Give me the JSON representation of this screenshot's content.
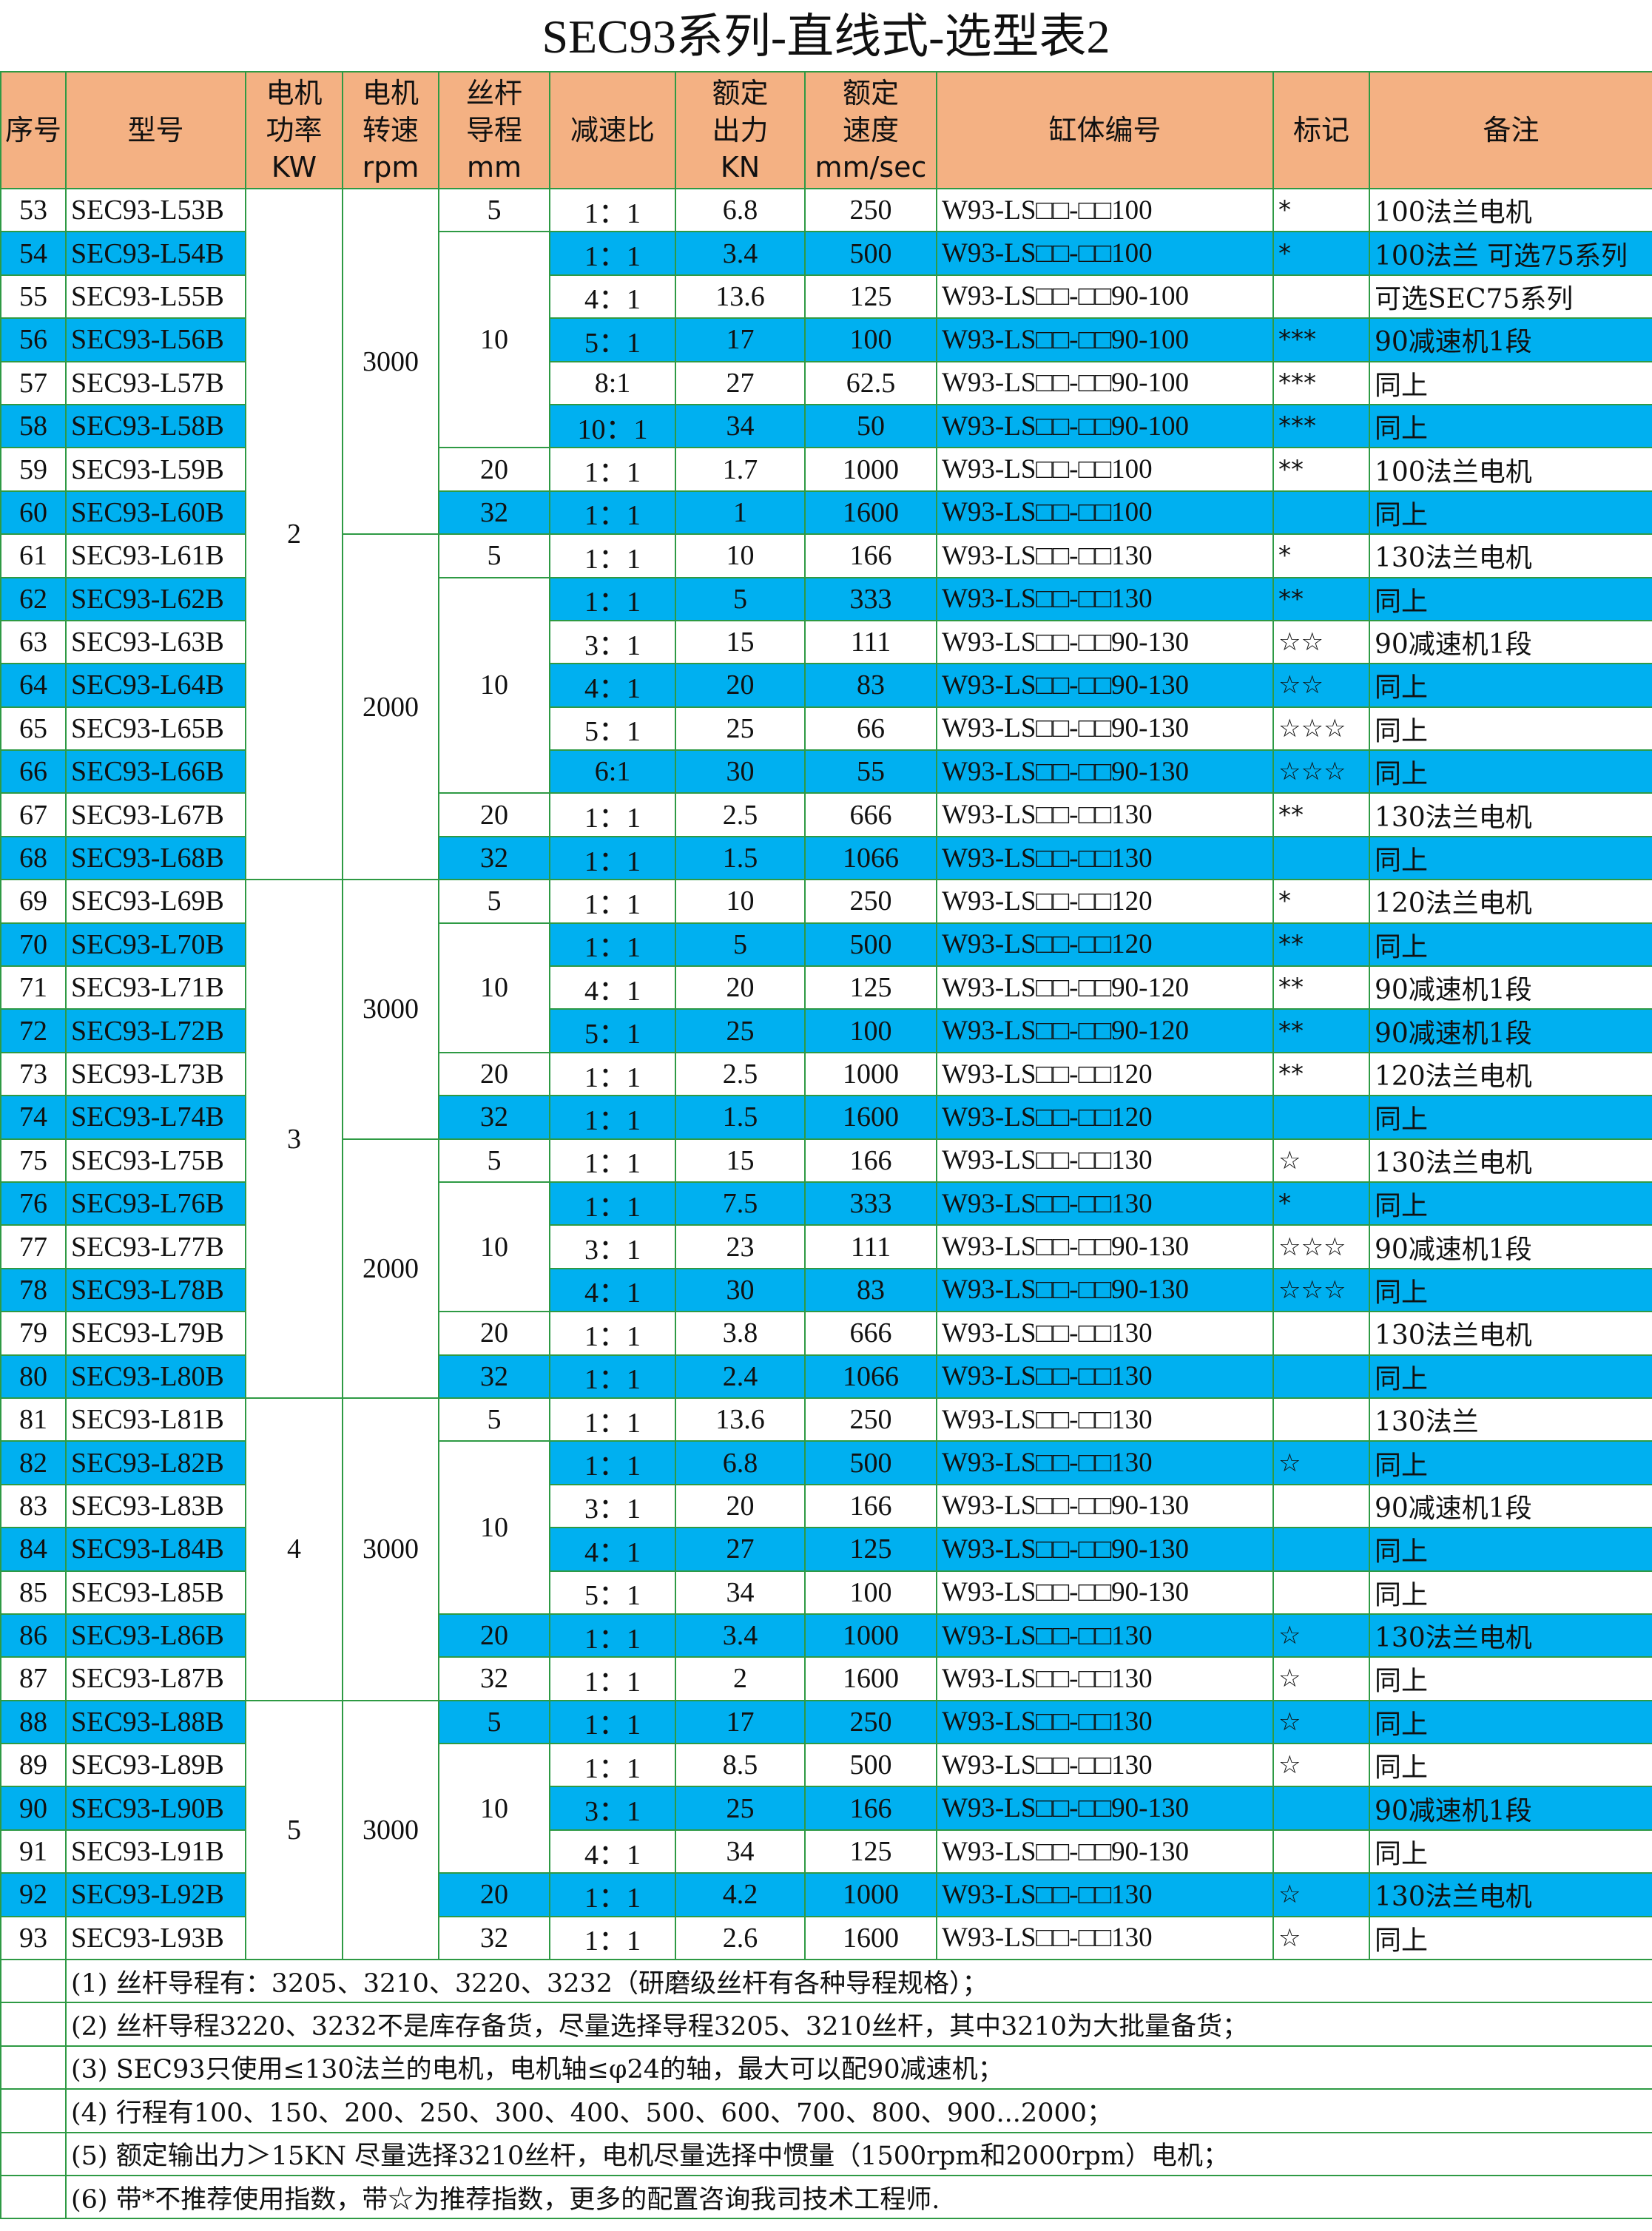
{
  "title": "SEC93系列-直线式-选型表2",
  "header": [
    {
      "key": "no",
      "lines": [
        "序号"
      ]
    },
    {
      "key": "model",
      "lines": [
        "型号"
      ]
    },
    {
      "key": "power",
      "lines": [
        "电机",
        "功率",
        "KW"
      ]
    },
    {
      "key": "speed",
      "lines": [
        "电机",
        "转速",
        "rpm"
      ]
    },
    {
      "key": "lead",
      "lines": [
        "丝杆",
        "导程",
        "mm"
      ]
    },
    {
      "key": "ratio",
      "lines": [
        "减速比"
      ]
    },
    {
      "key": "force",
      "lines": [
        "额定",
        "出力",
        "KN"
      ]
    },
    {
      "key": "vel",
      "lines": [
        "额定",
        "速度",
        "mm/sec"
      ]
    },
    {
      "key": "cylinder",
      "lines": [
        "缸体编号"
      ]
    },
    {
      "key": "mark",
      "lines": [
        "标记"
      ]
    },
    {
      "key": "note",
      "lines": [
        "备注"
      ]
    }
  ],
  "rows": [
    {
      "no": "53",
      "model": "SEC93-L53B",
      "ratio": "1：1",
      "force": "6.8",
      "vel": "250",
      "cylinder": "W93-LS□□-□□100",
      "mark": "*",
      "note": "100法兰电机"
    },
    {
      "no": "54",
      "model": "SEC93-L54B",
      "ratio": "1：1",
      "force": "3.4",
      "vel": "500",
      "cylinder": "W93-LS□□-□□100",
      "mark": "*",
      "note": "100法兰 可选75系列"
    },
    {
      "no": "55",
      "model": "SEC93-L55B",
      "ratio": "4：1",
      "force": "13.6",
      "vel": "125",
      "cylinder": "W93-LS□□-□□90-100",
      "mark": "",
      "note": "可选SEC75系列"
    },
    {
      "no": "56",
      "model": "SEC93-L56B",
      "ratio": "5：1",
      "force": "17",
      "vel": "100",
      "cylinder": "W93-LS□□-□□90-100",
      "mark": "***",
      "note": "90减速机1段"
    },
    {
      "no": "57",
      "model": "SEC93-L57B",
      "ratio": "8:1",
      "force": "27",
      "vel": "62.5",
      "cylinder": "W93-LS□□-□□90-100",
      "mark": "***",
      "note": "同上"
    },
    {
      "no": "58",
      "model": "SEC93-L58B",
      "ratio": "10：1",
      "force": "34",
      "vel": "50",
      "cylinder": "W93-LS□□-□□90-100",
      "mark": "***",
      "note": "同上"
    },
    {
      "no": "59",
      "model": "SEC93-L59B",
      "ratio": "1：1",
      "force": "1.7",
      "vel": "1000",
      "cylinder": "W93-LS□□-□□100",
      "mark": "**",
      "note": "100法兰电机"
    },
    {
      "no": "60",
      "model": "SEC93-L60B",
      "ratio": "1：1",
      "force": "1",
      "vel": "1600",
      "cylinder": "W93-LS□□-□□100",
      "mark": "",
      "note": "同上"
    },
    {
      "no": "61",
      "model": "SEC93-L61B",
      "ratio": "1：1",
      "force": "10",
      "vel": "166",
      "cylinder": "W93-LS□□-□□130",
      "mark": "*",
      "note": "130法兰电机"
    },
    {
      "no": "62",
      "model": "SEC93-L62B",
      "ratio": "1：1",
      "force": "5",
      "vel": "333",
      "cylinder": "W93-LS□□-□□130",
      "mark": "**",
      "note": "同上"
    },
    {
      "no": "63",
      "model": "SEC93-L63B",
      "ratio": "3：1",
      "force": "15",
      "vel": "111",
      "cylinder": "W93-LS□□-□□90-130",
      "mark": "☆☆",
      "note": "90减速机1段"
    },
    {
      "no": "64",
      "model": "SEC93-L64B",
      "ratio": "4：1",
      "force": "20",
      "vel": "83",
      "cylinder": "W93-LS□□-□□90-130",
      "mark": "☆☆",
      "note": "同上"
    },
    {
      "no": "65",
      "model": "SEC93-L65B",
      "ratio": "5：1",
      "force": "25",
      "vel": "66",
      "cylinder": "W93-LS□□-□□90-130",
      "mark": "☆☆☆",
      "note": "同上"
    },
    {
      "no": "66",
      "model": "SEC93-L66B",
      "ratio": "6:1",
      "force": "30",
      "vel": "55",
      "cylinder": "W93-LS□□-□□90-130",
      "mark": "☆☆☆",
      "note": "同上"
    },
    {
      "no": "67",
      "model": "SEC93-L67B",
      "ratio": "1：1",
      "force": "2.5",
      "vel": "666",
      "cylinder": "W93-LS□□-□□130",
      "mark": "**",
      "note": "130法兰电机"
    },
    {
      "no": "68",
      "model": "SEC93-L68B",
      "ratio": "1：1",
      "force": "1.5",
      "vel": "1066",
      "cylinder": "W93-LS□□-□□130",
      "mark": "",
      "note": "同上"
    },
    {
      "no": "69",
      "model": "SEC93-L69B",
      "ratio": "1：1",
      "force": "10",
      "vel": "250",
      "cylinder": "W93-LS□□-□□120",
      "mark": "*",
      "note": "120法兰电机"
    },
    {
      "no": "70",
      "model": "SEC93-L70B",
      "ratio": "1：1",
      "force": "5",
      "vel": "500",
      "cylinder": "W93-LS□□-□□120",
      "mark": "**",
      "note": "同上"
    },
    {
      "no": "71",
      "model": "SEC93-L71B",
      "ratio": "4：1",
      "force": "20",
      "vel": "125",
      "cylinder": "W93-LS□□-□□90-120",
      "mark": "**",
      "note": "90减速机1段"
    },
    {
      "no": "72",
      "model": "SEC93-L72B",
      "ratio": "5：1",
      "force": "25",
      "vel": "100",
      "cylinder": "W93-LS□□-□□90-120",
      "mark": "**",
      "note": "90减速机1段"
    },
    {
      "no": "73",
      "model": "SEC93-L73B",
      "ratio": "1：1",
      "force": "2.5",
      "vel": "1000",
      "cylinder": "W93-LS□□-□□120",
      "mark": "**",
      "note": "120法兰电机"
    },
    {
      "no": "74",
      "model": "SEC93-L74B",
      "ratio": "1：1",
      "force": "1.5",
      "vel": "1600",
      "cylinder": "W93-LS□□-□□120",
      "mark": "",
      "note": "同上"
    },
    {
      "no": "75",
      "model": "SEC93-L75B",
      "ratio": "1：1",
      "force": "15",
      "vel": "166",
      "cylinder": "W93-LS□□-□□130",
      "mark": "☆",
      "note": "130法兰电机"
    },
    {
      "no": "76",
      "model": "SEC93-L76B",
      "ratio": "1：1",
      "force": "7.5",
      "vel": "333",
      "cylinder": "W93-LS□□-□□130",
      "mark": "*",
      "note": "同上"
    },
    {
      "no": "77",
      "model": "SEC93-L77B",
      "ratio": "3：1",
      "force": "23",
      "vel": "111",
      "cylinder": "W93-LS□□-□□90-130",
      "mark": "☆☆☆",
      "note": "90减速机1段"
    },
    {
      "no": "78",
      "model": "SEC93-L78B",
      "ratio": "4：1",
      "force": "30",
      "vel": "83",
      "cylinder": "W93-LS□□-□□90-130",
      "mark": "☆☆☆",
      "note": "同上"
    },
    {
      "no": "79",
      "model": "SEC93-L79B",
      "ratio": "1：1",
      "force": "3.8",
      "vel": "666",
      "cylinder": "W93-LS□□-□□130",
      "mark": "",
      "note": "130法兰电机"
    },
    {
      "no": "80",
      "model": "SEC93-L80B",
      "ratio": "1：1",
      "force": "2.4",
      "vel": "1066",
      "cylinder": "W93-LS□□-□□130",
      "mark": "",
      "note": "同上"
    },
    {
      "no": "81",
      "model": "SEC93-L81B",
      "ratio": "1：1",
      "force": "13.6",
      "vel": "250",
      "cylinder": "W93-LS□□-□□130",
      "mark": "",
      "note": "130法兰"
    },
    {
      "no": "82",
      "model": "SEC93-L82B",
      "ratio": "1：1",
      "force": "6.8",
      "vel": "500",
      "cylinder": "W93-LS□□-□□130",
      "mark": "☆",
      "note": "同上"
    },
    {
      "no": "83",
      "model": "SEC93-L83B",
      "ratio": "3：1",
      "force": "20",
      "vel": "166",
      "cylinder": "W93-LS□□-□□90-130",
      "mark": "",
      "note": "90减速机1段"
    },
    {
      "no": "84",
      "model": "SEC93-L84B",
      "ratio": "4：1",
      "force": "27",
      "vel": "125",
      "cylinder": "W93-LS□□-□□90-130",
      "mark": "",
      "note": "同上"
    },
    {
      "no": "85",
      "model": "SEC93-L85B",
      "ratio": "5：1",
      "force": "34",
      "vel": "100",
      "cylinder": "W93-LS□□-□□90-130",
      "mark": "",
      "note": "同上"
    },
    {
      "no": "86",
      "model": "SEC93-L86B",
      "ratio": "1：1",
      "force": "3.4",
      "vel": "1000",
      "cylinder": "W93-LS□□-□□130",
      "mark": "☆",
      "note": "130法兰电机"
    },
    {
      "no": "87",
      "model": "SEC93-L87B",
      "ratio": "1：1",
      "force": "2",
      "vel": "1600",
      "cylinder": "W93-LS□□-□□130",
      "mark": "☆",
      "note": "同上"
    },
    {
      "no": "88",
      "model": "SEC93-L88B",
      "ratio": "1：1",
      "force": "17",
      "vel": "250",
      "cylinder": "W93-LS□□-□□130",
      "mark": "☆",
      "note": "同上"
    },
    {
      "no": "89",
      "model": "SEC93-L89B",
      "ratio": "1：1",
      "force": "8.5",
      "vel": "500",
      "cylinder": "W93-LS□□-□□130",
      "mark": "☆",
      "note": "同上"
    },
    {
      "no": "90",
      "model": "SEC93-L90B",
      "ratio": "3：1",
      "force": "25",
      "vel": "166",
      "cylinder": "W93-LS□□-□□90-130",
      "mark": "",
      "note": "90减速机1段"
    },
    {
      "no": "91",
      "model": "SEC93-L91B",
      "ratio": "4：1",
      "force": "34",
      "vel": "125",
      "cylinder": "W93-LS□□-□□90-130",
      "mark": "",
      "note": "同上"
    },
    {
      "no": "92",
      "model": "SEC93-L92B",
      "ratio": "1：1",
      "force": "4.2",
      "vel": "1000",
      "cylinder": "W93-LS□□-□□130",
      "mark": "☆",
      "note": "130法兰电机"
    },
    {
      "no": "93",
      "model": "SEC93-L93B",
      "ratio": "1：1",
      "force": "2.6",
      "vel": "1600",
      "cylinder": "W93-LS□□-□□130",
      "mark": "☆",
      "note": "同上"
    }
  ],
  "spans": {
    "power": [
      {
        "value": "2",
        "rows": 16
      },
      {
        "value": "3",
        "rows": 12
      },
      {
        "value": "4",
        "rows": 7
      },
      {
        "value": "5",
        "rows": 6
      }
    ],
    "speed": [
      {
        "value": "3000",
        "rows": 8
      },
      {
        "value": "2000",
        "rows": 8
      },
      {
        "value": "3000",
        "rows": 6
      },
      {
        "value": "2000",
        "rows": 6
      },
      {
        "value": "3000",
        "rows": 7
      },
      {
        "value": "3000",
        "rows": 6
      }
    ],
    "lead": [
      {
        "value": "5",
        "rows": 1
      },
      {
        "value": "10",
        "rows": 5
      },
      {
        "value": "20",
        "rows": 1
      },
      {
        "value": "32",
        "rows": 1
      },
      {
        "value": "5",
        "rows": 1
      },
      {
        "value": "10",
        "rows": 5
      },
      {
        "value": "20",
        "rows": 1
      },
      {
        "value": "32",
        "rows": 1
      },
      {
        "value": "5",
        "rows": 1
      },
      {
        "value": "10",
        "rows": 3
      },
      {
        "value": "20",
        "rows": 1
      },
      {
        "value": "32",
        "rows": 1
      },
      {
        "value": "5",
        "rows": 1
      },
      {
        "value": "10",
        "rows": 3
      },
      {
        "value": "20",
        "rows": 1
      },
      {
        "value": "32",
        "rows": 1
      },
      {
        "value": "5",
        "rows": 1
      },
      {
        "value": "10",
        "rows": 4
      },
      {
        "value": "20",
        "rows": 1
      },
      {
        "value": "32",
        "rows": 1
      },
      {
        "value": "5",
        "rows": 1
      },
      {
        "value": "10",
        "rows": 3
      },
      {
        "value": "20",
        "rows": 1
      },
      {
        "value": "32",
        "rows": 1
      }
    ]
  },
  "highlight_color": "#00b0f0",
  "header_color": "#f4b183",
  "border_color": "#2e9a44",
  "footnotes": [
    "(1) 丝杆导程有：3205、3210、3220、3232（研磨级丝杆有各种导程规格）；",
    "(2) 丝杆导程3220、3232不是库存备货，尽量选择导程3205、3210丝杆，其中3210为大批量备货；",
    "(3) SEC93只使用≤130法兰的电机，电机轴≤φ24的轴，最大可以配90减速机；",
    "(4) 行程有100、150、200、250、300、400、500、600、700、800、900...2000；",
    "(5) 额定输出力＞15KN  尽量选择3210丝杆，电机尽量选择中惯量（1500rpm和2000rpm）电机；",
    "(6) 带*不推荐使用指数，带☆为推荐指数，更多的配置咨询我司技术工程师."
  ]
}
